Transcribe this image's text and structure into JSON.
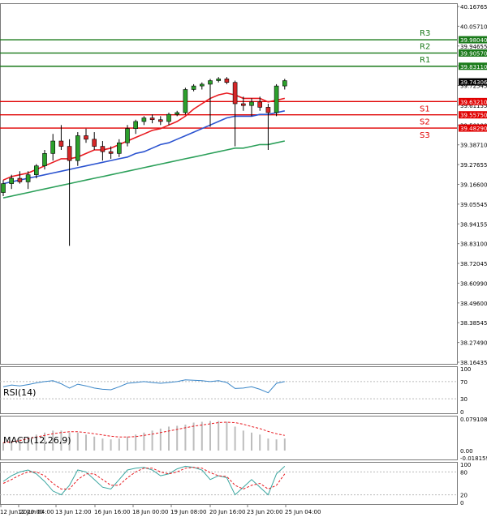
{
  "chart_data": {
    "type": "candlestick",
    "price_ticks": [
      "40.16765",
      "40.05710",
      "39.94655",
      "39.83600",
      "39.72545",
      "39.61155",
      "39.50100",
      "39.38710",
      "39.27655",
      "39.16600",
      "39.05545",
      "38.94155",
      "38.83100",
      "38.72045",
      "38.60990",
      "38.49600",
      "38.38545",
      "38.27490",
      "38.16435"
    ],
    "x_labels": [
      "12 Jun 2020:00",
      "12 Jun 04:00",
      "13 Jun 12:00",
      "16 Jun 16:00",
      "18 Jun 00:00",
      "19 Jun 08:00",
      "20 Jun 16:00",
      "23 Jun 20:00",
      "25 Jun 04:00"
    ],
    "ylim": [
      38.16435,
      40.16765
    ],
    "levels": [
      {
        "name": "R3",
        "value": 39.9804,
        "label": "39.98040",
        "color": "#1a7a1a"
      },
      {
        "name": "R2",
        "value": 39.9057,
        "label": "39.90570",
        "color": "#1a7a1a"
      },
      {
        "name": "R1",
        "value": 39.8311,
        "label": "39.83110",
        "color": "#1a7a1a"
      },
      {
        "name": "S1",
        "value": 39.6321,
        "label": "39.63210",
        "color": "#e00000"
      },
      {
        "name": "S2",
        "value": 39.5575,
        "label": "39.55750",
        "color": "#e00000"
      },
      {
        "name": "S3",
        "value": 39.4829,
        "label": "39.48290",
        "color": "#e00000"
      }
    ],
    "current_price": {
      "value": 39.74306,
      "label": "39.74306"
    },
    "candles": [
      [
        39.12,
        39.19,
        39.1,
        39.17
      ],
      [
        39.17,
        39.22,
        39.14,
        39.2
      ],
      [
        39.2,
        39.24,
        39.17,
        39.18
      ],
      [
        39.18,
        39.24,
        39.14,
        39.22
      ],
      [
        39.22,
        39.28,
        39.2,
        39.27
      ],
      [
        39.27,
        39.36,
        39.25,
        39.34
      ],
      [
        39.34,
        39.45,
        39.3,
        39.41
      ],
      [
        39.41,
        39.5,
        39.36,
        39.38
      ],
      [
        39.38,
        39.42,
        38.82,
        39.3
      ],
      [
        39.3,
        39.46,
        39.27,
        39.44
      ],
      [
        39.44,
        39.48,
        39.4,
        39.42
      ],
      [
        39.42,
        39.46,
        39.36,
        39.38
      ],
      [
        39.38,
        39.41,
        39.3,
        39.35
      ],
      [
        39.35,
        39.38,
        39.31,
        39.34
      ],
      [
        39.34,
        39.42,
        39.32,
        39.4
      ],
      [
        39.4,
        39.5,
        39.38,
        39.48
      ],
      [
        39.48,
        39.53,
        39.45,
        39.52
      ],
      [
        39.52,
        39.55,
        39.5,
        39.54
      ],
      [
        39.54,
        39.56,
        39.51,
        39.53
      ],
      [
        39.53,
        39.55,
        39.5,
        39.52
      ],
      [
        39.52,
        39.57,
        39.5,
        39.56
      ],
      [
        39.56,
        39.58,
        39.55,
        39.57
      ],
      [
        39.57,
        39.71,
        39.56,
        39.7
      ],
      [
        39.7,
        39.73,
        39.69,
        39.72
      ],
      [
        39.72,
        39.74,
        39.7,
        39.73
      ],
      [
        39.73,
        39.76,
        39.49,
        39.75
      ],
      [
        39.75,
        39.77,
        39.74,
        39.76
      ],
      [
        39.76,
        39.77,
        39.73,
        39.74
      ],
      [
        39.74,
        39.75,
        39.38,
        39.62
      ],
      [
        39.62,
        39.66,
        39.58,
        39.61
      ],
      [
        39.61,
        39.65,
        39.55,
        39.63
      ],
      [
        39.63,
        39.66,
        39.58,
        39.6
      ],
      [
        39.6,
        39.62,
        39.36,
        39.57
      ],
      [
        39.57,
        39.73,
        39.55,
        39.72
      ],
      [
        39.72,
        39.76,
        39.7,
        39.75
      ]
    ],
    "moving_averages": [
      {
        "color": "#e8191f",
        "values": [
          39.19,
          39.21,
          39.22,
          39.23,
          39.25,
          39.27,
          39.29,
          39.31,
          39.31,
          39.32,
          39.34,
          39.36,
          39.36,
          39.37,
          39.39,
          39.41,
          39.43,
          39.45,
          39.47,
          39.48,
          39.5,
          39.52,
          39.55,
          39.59,
          39.62,
          39.65,
          39.67,
          39.68,
          39.67,
          39.65,
          39.65,
          39.65,
          39.63,
          39.64,
          39.65
        ]
      },
      {
        "color": "#2b53d0",
        "values": [
          39.17,
          39.18,
          39.19,
          39.2,
          39.21,
          39.22,
          39.23,
          39.24,
          39.25,
          39.26,
          39.27,
          39.28,
          39.29,
          39.3,
          39.31,
          39.32,
          39.34,
          39.35,
          39.37,
          39.39,
          39.4,
          39.42,
          39.44,
          39.46,
          39.48,
          39.5,
          39.52,
          39.54,
          39.55,
          39.55,
          39.55,
          39.56,
          39.56,
          39.57,
          39.58
        ]
      },
      {
        "color": "#2ca05a",
        "values": [
          39.09,
          39.1,
          39.11,
          39.12,
          39.13,
          39.14,
          39.15,
          39.16,
          39.17,
          39.18,
          39.19,
          39.2,
          39.21,
          39.22,
          39.23,
          39.24,
          39.25,
          39.26,
          39.27,
          39.28,
          39.29,
          39.3,
          39.31,
          39.32,
          39.33,
          39.34,
          39.35,
          39.36,
          39.37,
          39.37,
          39.38,
          39.39,
          39.39,
          39.4,
          39.41
        ]
      }
    ],
    "rsi": {
      "label": "RSI(14)",
      "ticks": [
        "100",
        "70",
        "30",
        "0"
      ],
      "values": [
        58,
        62,
        60,
        63,
        67,
        70,
        72,
        65,
        55,
        64,
        60,
        55,
        52,
        51,
        58,
        66,
        68,
        70,
        68,
        66,
        68,
        70,
        74,
        73,
        72,
        70,
        72,
        68,
        54,
        55,
        58,
        52,
        44,
        66,
        70
      ]
    },
    "macd": {
      "label": "MACD(12,26,9)",
      "ticks": [
        "0.079108",
        "0.00",
        "-0.018159"
      ],
      "hist": [
        0.02,
        0.025,
        0.03,
        0.035,
        0.04,
        0.045,
        0.05,
        0.05,
        0.045,
        0.045,
        0.04,
        0.035,
        0.03,
        0.028,
        0.03,
        0.035,
        0.04,
        0.045,
        0.05,
        0.055,
        0.06,
        0.062,
        0.065,
        0.07,
        0.072,
        0.074,
        0.074,
        0.072,
        0.06,
        0.05,
        0.045,
        0.04,
        0.03,
        0.028,
        0.03
      ],
      "signal": [
        0.02,
        0.022,
        0.025,
        0.03,
        0.034,
        0.038,
        0.042,
        0.045,
        0.047,
        0.047,
        0.045,
        0.042,
        0.039,
        0.036,
        0.034,
        0.034,
        0.035,
        0.038,
        0.041,
        0.045,
        0.049,
        0.053,
        0.057,
        0.061,
        0.064,
        0.067,
        0.07,
        0.071,
        0.07,
        0.066,
        0.06,
        0.055,
        0.048,
        0.042,
        0.038
      ]
    },
    "stoch": {
      "ticks": [
        "100",
        "80",
        "20",
        "0"
      ],
      "k": [
        55,
        70,
        80,
        85,
        75,
        55,
        30,
        20,
        45,
        85,
        80,
        60,
        40,
        35,
        60,
        85,
        90,
        92,
        85,
        70,
        75,
        88,
        95,
        92,
        85,
        60,
        70,
        65,
        20,
        40,
        60,
        40,
        20,
        75,
        95
      ],
      "d": [
        50,
        60,
        72,
        80,
        80,
        70,
        50,
        35,
        35,
        60,
        75,
        75,
        60,
        45,
        45,
        65,
        80,
        90,
        90,
        80,
        75,
        80,
        90,
        92,
        90,
        78,
        70,
        68,
        45,
        35,
        45,
        50,
        35,
        45,
        75
      ]
    }
  }
}
